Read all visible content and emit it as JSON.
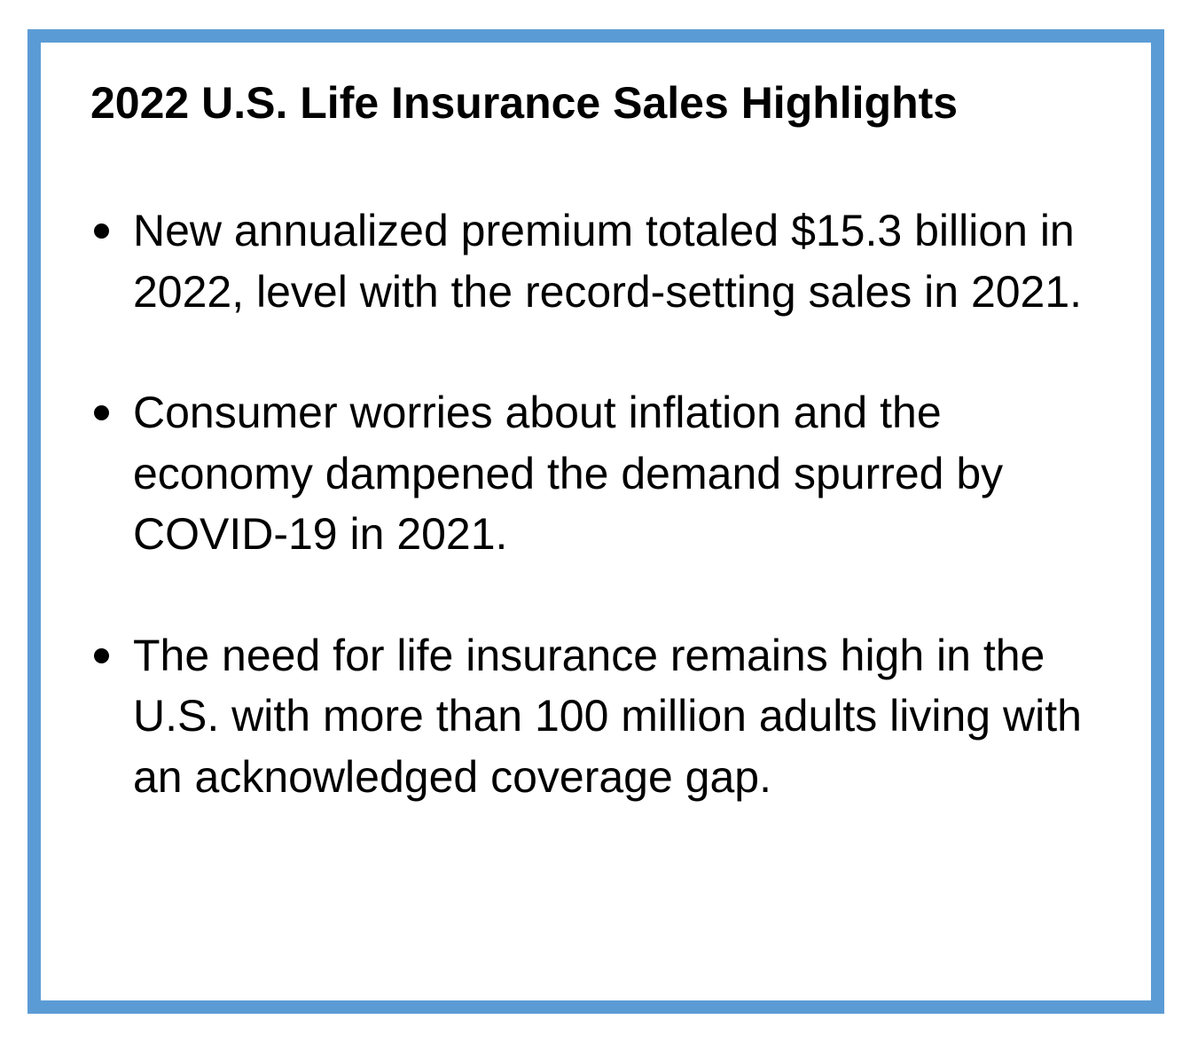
{
  "document": {
    "title": "2022 U.S. Life Insurance Sales Highlights",
    "bullets": [
      "New annualized premium totaled $15.3 billion in 2022, level with the record-setting sales in 2021.",
      "Consumer worries about inflation and the economy dampened the demand spurred by COVID-19 in 2021.",
      "The need for life insurance remains high in the U.S. with more than 100 million adults living with an acknowledged coverage gap."
    ]
  },
  "colors": {
    "border": "#5b9bd5",
    "background": "#ffffff",
    "text": "#000000"
  }
}
